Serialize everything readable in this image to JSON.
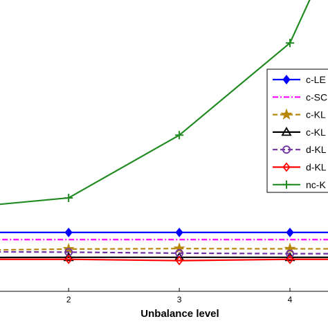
{
  "chart_data": {
    "type": "line",
    "xlabel": "Unbalance level",
    "ylabel": "",
    "x_ticks": [
      "2",
      "3",
      "4"
    ],
    "x_range": [
      1.38,
      4.35
    ],
    "y_range": [
      0,
      1
    ],
    "legend_position": "right",
    "series": [
      {
        "name": "c-LE",
        "color": "#0000ff",
        "dash": "solid",
        "marker": "diamond-filled",
        "x": [
          1,
          2,
          3,
          4,
          5
        ],
        "y": [
          0.23,
          0.23,
          0.23,
          0.23,
          0.23
        ]
      },
      {
        "name": "c-SC",
        "color": "#ff00ff",
        "dash": "dashdot",
        "marker": "none",
        "x": [
          1,
          2,
          3,
          4,
          5
        ],
        "y": [
          0.202,
          0.202,
          0.202,
          0.202,
          0.202
        ]
      },
      {
        "name": "c-KL",
        "color": "#b8860b",
        "dash": "dashed",
        "marker": "star",
        "x": [
          1,
          2,
          3,
          4,
          5
        ],
        "y": [
          0.16,
          0.165,
          0.167,
          0.166,
          0.166
        ]
      },
      {
        "name": "c-KL",
        "color": "#000000",
        "dash": "solid",
        "marker": "triangle",
        "x": [
          1,
          2,
          3,
          4,
          5
        ],
        "y": [
          0.132,
          0.133,
          0.133,
          0.133,
          0.133
        ]
      },
      {
        "name": "d-KL",
        "color": "#7030a0",
        "dash": "dashed",
        "marker": "circle",
        "x": [
          1,
          2,
          3,
          4,
          5
        ],
        "y": [
          0.155,
          0.153,
          0.149,
          0.147,
          0.147
        ]
      },
      {
        "name": "d-KL",
        "color": "#ff0000",
        "dash": "solid",
        "marker": "diamond",
        "x": [
          1,
          2,
          3,
          4,
          5
        ],
        "y": [
          0.125,
          0.125,
          0.12,
          0.125,
          0.125
        ]
      },
      {
        "name": "nc-K",
        "color": "#228b22",
        "dash": "solid",
        "marker": "plus",
        "x": [
          1.38,
          2,
          3,
          4,
          4.35
        ],
        "y": [
          0.34,
          0.365,
          0.61,
          0.97,
          1.3
        ]
      }
    ]
  }
}
